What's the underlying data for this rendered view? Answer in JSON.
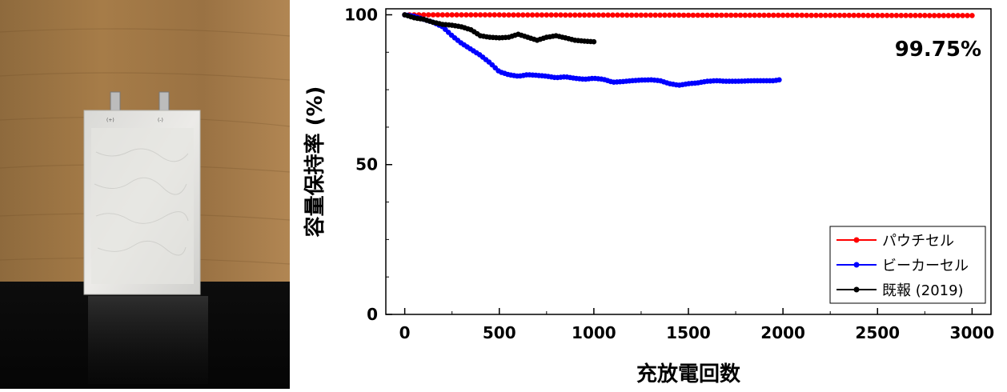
{
  "photo": {
    "caption": "",
    "tab_labels": [
      "(+)",
      "(-)"
    ]
  },
  "chart_data": {
    "type": "line",
    "xlabel": "充放電回数",
    "ylabel": "容量保持率 (%)",
    "xlim": [
      -100,
      3100
    ],
    "ylim": [
      0,
      102
    ],
    "x_ticks": [
      "0",
      "500",
      "1000",
      "1500",
      "2000",
      "2500",
      "3000"
    ],
    "y_ticks": [
      "0",
      "50",
      "100"
    ],
    "annotation": "99.75%",
    "legend_position": "bottom-right",
    "series": [
      {
        "name": "パウチセル",
        "color": "#ff0000",
        "x": [
          0,
          3000
        ],
        "y": [
          100,
          99.75
        ],
        "points": 120
      },
      {
        "name": "ビーカーセル",
        "color": "#0000ff",
        "x": [
          0,
          50,
          100,
          150,
          200,
          250,
          300,
          350,
          400,
          450,
          500,
          550,
          600,
          650,
          700,
          750,
          800,
          850,
          900,
          950,
          1000,
          1050,
          1100,
          1150,
          1200,
          1250,
          1300,
          1350,
          1400,
          1450,
          1500,
          1550,
          1600,
          1650,
          1700,
          1750,
          1800,
          1850,
          1900,
          1950,
          1980
        ],
        "y": [
          100,
          99.5,
          98.5,
          97.5,
          96,
          93,
          90.5,
          88.5,
          86.5,
          84,
          81,
          80,
          79.5,
          80,
          79.8,
          79.5,
          79,
          79.3,
          78.8,
          78.5,
          78.8,
          78.5,
          77.5,
          77.7,
          78,
          78.2,
          78.3,
          78,
          77,
          76.5,
          77,
          77.3,
          77.8,
          78,
          77.8,
          77.8,
          77.9,
          78,
          78,
          78,
          78.3
        ]
      },
      {
        "name": "既報 (2019)",
        "color": "#000000",
        "x": [
          0,
          50,
          100,
          150,
          200,
          250,
          300,
          350,
          400,
          450,
          500,
          550,
          600,
          650,
          700,
          750,
          800,
          850,
          900,
          950,
          1000
        ],
        "y": [
          100,
          99,
          98.5,
          97.5,
          96.8,
          96.5,
          96,
          95,
          93,
          92.5,
          92.3,
          92.5,
          93.5,
          92.5,
          91.5,
          92.5,
          93,
          92.3,
          91.5,
          91.2,
          91
        ]
      }
    ]
  }
}
